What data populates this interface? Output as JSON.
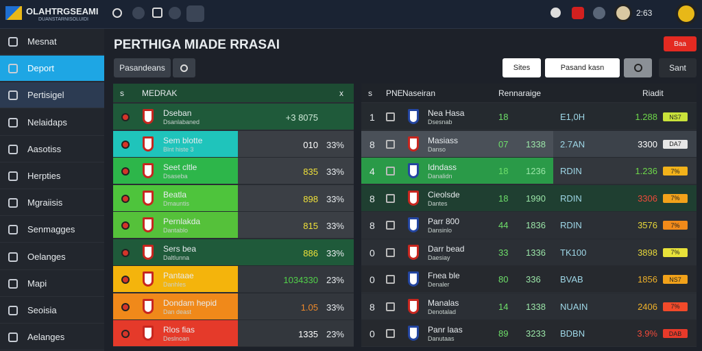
{
  "header": {
    "logo": "OLAHTRGSEAMI",
    "logo_sub": "DUANSTARNISOLUIDI",
    "user_value": "2:63"
  },
  "sidebar": {
    "items": [
      "Mesnat",
      "Deport",
      "Pertisigel",
      "Nelaidaps",
      "Aasotiss",
      "Herpties",
      "Mgraiisis",
      "Senmagges",
      "Oelanges",
      "Mapi",
      "Seoisia",
      "Aelanges"
    ]
  },
  "main": {
    "title": "PERTHIGA MIADE RRASAI",
    "action_button": "Baa",
    "search_label": "Pasandeans",
    "filter_sites": "Sites",
    "filter_field": "Pasand kasn",
    "sort": "Sant"
  },
  "left_table": {
    "header": [
      "s",
      "MEDRAK",
      "x"
    ],
    "rows": [
      [
        "Dseban",
        "Dsanlabaned",
        "+3 8075",
        ""
      ],
      [
        "Sem blotte",
        "Blnt histe 3",
        "010",
        "33%"
      ],
      [
        "Seet cltle",
        "Dsaseba",
        "835",
        "33%"
      ],
      [
        "Beatla",
        "Dmauntis",
        "898",
        "33%"
      ],
      [
        "Pernlakda",
        "Dantablo",
        "815",
        "33%"
      ],
      [
        "Sers bea",
        "Daltlunna",
        "886",
        "33%"
      ],
      [
        "Pantaae",
        "Danhles",
        "1034330",
        "23%"
      ],
      [
        "Dondam hepid",
        "Dan deast",
        "1.05",
        "33%"
      ],
      [
        "Rlos fias",
        "Deslnoan",
        "1335",
        "23%"
      ]
    ]
  },
  "right_table": {
    "header": [
      "s",
      "PNE",
      "Naseiran",
      "Rennaraige",
      "Riadit"
    ],
    "rows": [
      [
        "1",
        "Nea Hasa",
        "Dsesnab",
        "18",
        "",
        "E1,0H",
        "1.288",
        "NS7"
      ],
      [
        "8",
        "Masiass",
        "Danso",
        "07",
        "1338",
        "2.7AN",
        "3300",
        "DA7"
      ],
      [
        "4",
        "Idndass",
        "Danalidn",
        "18",
        "1236",
        "RDIN",
        "1.236",
        "7%"
      ],
      [
        "8",
        "Cieolsde",
        "Dantes",
        "18",
        "1990",
        "RDIN",
        "3306",
        "7%"
      ],
      [
        "8",
        "Parr 800",
        "Dansinlo",
        "44",
        "1836",
        "RDIN",
        "3576",
        "7%"
      ],
      [
        "0",
        "Darr bead",
        "Daesiay",
        "33",
        "1336",
        "TK100",
        "3898",
        "7%"
      ],
      [
        "0",
        "Fnea ble",
        "Denaler",
        "80",
        "336",
        "BVAB",
        "1856",
        "NS7"
      ],
      [
        "8",
        "Manalas",
        "Denotalad",
        "14",
        "1338",
        "NUAIN",
        "2406",
        "7%"
      ],
      [
        "0",
        "Panr laas",
        "Danutaas",
        "89",
        "3233",
        "BDBN",
        "3.9%",
        "DAB"
      ]
    ]
  }
}
